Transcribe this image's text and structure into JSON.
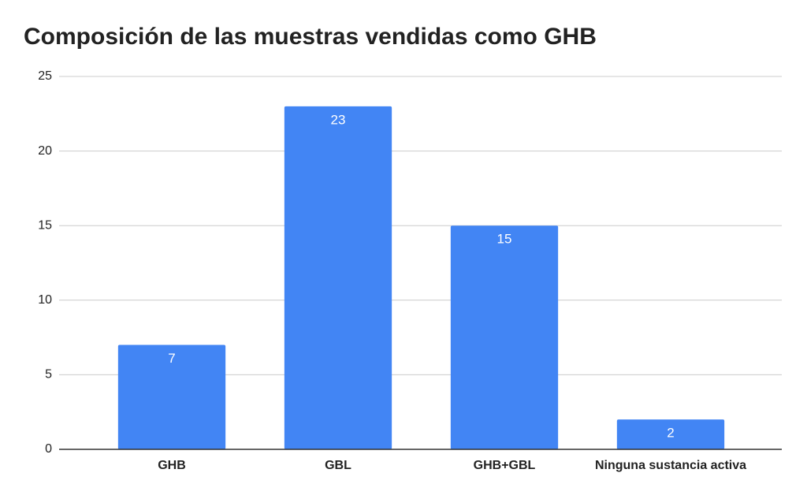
{
  "chart_data": {
    "type": "bar",
    "title": "Composición de las muestras vendidas como GHB",
    "categories": [
      "GHB",
      "GBL",
      "GHB+GBL",
      "Ninguna sustancia activa"
    ],
    "values": [
      7,
      23,
      15,
      2
    ],
    "color": "#4285f4",
    "ylim": [
      0,
      25
    ],
    "yticks": [
      0,
      5,
      10,
      15,
      20,
      25
    ],
    "grid": true,
    "data_labels": true
  }
}
